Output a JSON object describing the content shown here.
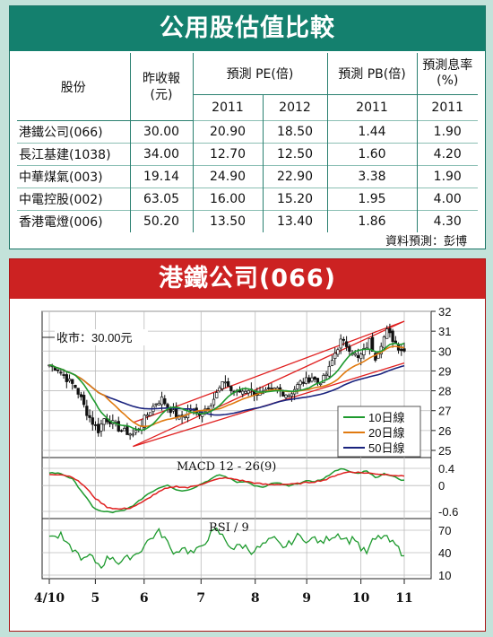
{
  "table": {
    "title": "公用股估值比較",
    "headers": {
      "stock": "股份",
      "prev_close_1": "昨收報",
      "prev_close_2": "(元)",
      "pe": "預測 PE(倍)",
      "pb": "預測 PB(倍)",
      "yield_1": "預測息率",
      "yield_2": "(%)"
    },
    "years": {
      "pe_a": "2011",
      "pe_b": "2012",
      "pb": "2011",
      "yield": "2011"
    },
    "rows": [
      {
        "name": "港鐵公司(066)",
        "close": "30.00",
        "pe2011": "20.90",
        "pe2012": "18.50",
        "pb": "1.44",
        "yield": "1.90"
      },
      {
        "name": "長江基建(1038)",
        "close": "34.00",
        "pe2011": "12.70",
        "pe2012": "12.50",
        "pb": "1.60",
        "yield": "4.20"
      },
      {
        "name": "中華煤氣(003)",
        "close": "19.14",
        "pe2011": "24.90",
        "pe2012": "22.90",
        "pb": "3.38",
        "yield": "1.90"
      },
      {
        "name": "中電控股(002)",
        "close": "63.05",
        "pe2011": "16.00",
        "pe2012": "15.20",
        "pb": "1.95",
        "yield": "4.00"
      },
      {
        "name": "香港電燈(006)",
        "close": "50.20",
        "pe2011": "13.50",
        "pe2012": "13.40",
        "pb": "1.86",
        "yield": "4.30"
      }
    ],
    "source": "資料預測：彭博"
  },
  "chart": {
    "title": "港鐵公司(066)",
    "close_label": "收市：30.00元",
    "legend": [
      "10日線",
      "20日線",
      "50日線"
    ],
    "macd_label": "MACD 12 - 26(9)",
    "rsi_label": "RSI / 9"
  },
  "colors": {
    "table_header": "#14806e",
    "chart_header": "#cc2222",
    "candle": "#111111",
    "ma10": "#1e9a2e",
    "ma20": "#e07a10",
    "ma50": "#1a237e",
    "channel": "#e02020",
    "macd": "#1e9a2e",
    "signal": "#e02020",
    "rsi": "#1e9a2e"
  },
  "chart_data": [
    {
      "type": "candlestick",
      "title": "港鐵公司(066)",
      "x_ticks": [
        "4/10",
        "5",
        "6",
        "7",
        "8",
        "9",
        "10",
        "11"
      ],
      "y_ticks": [
        25,
        26,
        27,
        28,
        29,
        30,
        31,
        32
      ],
      "ylim": [
        25,
        32
      ],
      "annotation": "收市：30.00元",
      "close_anchors": [
        [
          0,
          29.3
        ],
        [
          3,
          29.1
        ],
        [
          6,
          28.6
        ],
        [
          9,
          28.2
        ],
        [
          11,
          27.6
        ],
        [
          13,
          26.9
        ],
        [
          15,
          26.4
        ],
        [
          17,
          26.0
        ],
        [
          19,
          26.6
        ],
        [
          21,
          26.5
        ],
        [
          23,
          26.2
        ],
        [
          25,
          26.0
        ],
        [
          27,
          25.9
        ],
        [
          29,
          25.8
        ],
        [
          31,
          26.1
        ],
        [
          33,
          26.6
        ],
        [
          35,
          27.0
        ],
        [
          37,
          27.4
        ],
        [
          39,
          27.6
        ],
        [
          41,
          27.2
        ],
        [
          43,
          26.9
        ],
        [
          45,
          26.6
        ],
        [
          47,
          26.8
        ],
        [
          49,
          27.1
        ],
        [
          51,
          26.8
        ],
        [
          53,
          27.0
        ],
        [
          55,
          27.2
        ],
        [
          57,
          27.6
        ],
        [
          59,
          28.1
        ],
        [
          61,
          28.5
        ],
        [
          63,
          28.0
        ],
        [
          65,
          27.9
        ],
        [
          67,
          28.0
        ],
        [
          69,
          28.1
        ],
        [
          71,
          27.9
        ],
        [
          73,
          27.8
        ],
        [
          75,
          27.9
        ],
        [
          77,
          28.0
        ],
        [
          79,
          28.1
        ],
        [
          81,
          27.9
        ],
        [
          83,
          27.8
        ],
        [
          85,
          28.1
        ],
        [
          87,
          28.4
        ],
        [
          89,
          28.5
        ],
        [
          91,
          28.7
        ],
        [
          93,
          28.4
        ],
        [
          95,
          28.6
        ],
        [
          97,
          29.1
        ],
        [
          99,
          29.9
        ],
        [
          101,
          30.5
        ],
        [
          103,
          30.3
        ],
        [
          105,
          30.0
        ],
        [
          107,
          29.6
        ],
        [
          109,
          30.0
        ],
        [
          111,
          30.5
        ],
        [
          113,
          29.7
        ],
        [
          115,
          30.4
        ],
        [
          117,
          31.0
        ],
        [
          119,
          30.6
        ],
        [
          121,
          30.2
        ],
        [
          123,
          30.0
        ]
      ],
      "moving_averages": [
        "10日線",
        "20日線",
        "50日線"
      ],
      "channel_lines": [
        {
          "from": [
            29,
            25.2
          ],
          "to": [
            123,
            31.5
          ]
        },
        {
          "from": [
            29,
            26.4
          ],
          "to": [
            123,
            31.5
          ]
        },
        {
          "from": [
            29,
            25.2
          ],
          "to": [
            123,
            29.4
          ]
        }
      ]
    },
    {
      "type": "line",
      "title": "MACD 12 - 26(9)",
      "y_ticks": [
        0.4,
        0,
        -0.6
      ],
      "ylim": [
        -0.7,
        0.55
      ],
      "series": [
        {
          "name": "MACD",
          "anchors": [
            [
              0,
              0.3
            ],
            [
              4,
              0.28
            ],
            [
              8,
              0.15
            ],
            [
              12,
              -0.2
            ],
            [
              15,
              -0.5
            ],
            [
              18,
              -0.6
            ],
            [
              22,
              -0.62
            ],
            [
              26,
              -0.58
            ],
            [
              30,
              -0.42
            ],
            [
              34,
              -0.2
            ],
            [
              38,
              -0.05
            ],
            [
              41,
              0.02
            ],
            [
              44,
              -0.1
            ],
            [
              47,
              -0.12
            ],
            [
              50,
              -0.05
            ],
            [
              53,
              0.05
            ],
            [
              56,
              0.15
            ],
            [
              59,
              0.25
            ],
            [
              62,
              0.18
            ],
            [
              65,
              0.08
            ],
            [
              68,
              0.1
            ],
            [
              71,
              0.0
            ],
            [
              74,
              -0.05
            ],
            [
              77,
              0.05
            ],
            [
              80,
              0.05
            ],
            [
              83,
              -0.02
            ],
            [
              86,
              0.05
            ],
            [
              89,
              0.1
            ],
            [
              92,
              0.1
            ],
            [
              95,
              0.15
            ],
            [
              98,
              0.3
            ],
            [
              101,
              0.4
            ],
            [
              104,
              0.32
            ],
            [
              107,
              0.28
            ],
            [
              110,
              0.35
            ],
            [
              113,
              0.18
            ],
            [
              116,
              0.28
            ],
            [
              119,
              0.22
            ],
            [
              122,
              0.12
            ]
          ]
        },
        {
          "name": "Signal",
          "anchors": [
            [
              0,
              0.26
            ],
            [
              4,
              0.26
            ],
            [
              8,
              0.2
            ],
            [
              12,
              0.0
            ],
            [
              16,
              -0.3
            ],
            [
              20,
              -0.5
            ],
            [
              24,
              -0.55
            ],
            [
              28,
              -0.52
            ],
            [
              32,
              -0.4
            ],
            [
              36,
              -0.22
            ],
            [
              40,
              -0.08
            ],
            [
              44,
              -0.02
            ],
            [
              48,
              -0.05
            ],
            [
              52,
              0.02
            ],
            [
              56,
              0.1
            ],
            [
              60,
              0.18
            ],
            [
              64,
              0.15
            ],
            [
              68,
              0.1
            ],
            [
              72,
              0.05
            ],
            [
              76,
              0.02
            ],
            [
              80,
              0.03
            ],
            [
              84,
              0.03
            ],
            [
              88,
              0.06
            ],
            [
              92,
              0.09
            ],
            [
              96,
              0.14
            ],
            [
              100,
              0.26
            ],
            [
              104,
              0.32
            ],
            [
              108,
              0.3
            ],
            [
              112,
              0.28
            ],
            [
              116,
              0.26
            ],
            [
              120,
              0.24
            ],
            [
              122,
              0.22
            ]
          ]
        }
      ]
    },
    {
      "type": "line",
      "title": "RSI / 9",
      "y_ticks": [
        70,
        40,
        10
      ],
      "ylim": [
        10,
        80
      ],
      "series": [
        {
          "name": "RSI",
          "anchors": [
            [
              0,
              65
            ],
            [
              2,
              60
            ],
            [
              4,
              63
            ],
            [
              6,
              50
            ],
            [
              8,
              45
            ],
            [
              10,
              38
            ],
            [
              12,
              30
            ],
            [
              14,
              36
            ],
            [
              16,
              28
            ],
            [
              18,
              22
            ],
            [
              20,
              32
            ],
            [
              22,
              35
            ],
            [
              24,
              26
            ],
            [
              26,
              30
            ],
            [
              28,
              35
            ],
            [
              30,
              38
            ],
            [
              32,
              45
            ],
            [
              34,
              55
            ],
            [
              36,
              62
            ],
            [
              38,
              68
            ],
            [
              40,
              60
            ],
            [
              42,
              45
            ],
            [
              44,
              40
            ],
            [
              46,
              48
            ],
            [
              48,
              42
            ],
            [
              50,
              40
            ],
            [
              52,
              45
            ],
            [
              54,
              55
            ],
            [
              56,
              65
            ],
            [
              58,
              70
            ],
            [
              60,
              62
            ],
            [
              62,
              52
            ],
            [
              64,
              45
            ],
            [
              66,
              50
            ],
            [
              68,
              48
            ],
            [
              70,
              42
            ],
            [
              72,
              45
            ],
            [
              74,
              50
            ],
            [
              76,
              55
            ],
            [
              78,
              58
            ],
            [
              80,
              50
            ],
            [
              82,
              48
            ],
            [
              84,
              55
            ],
            [
              86,
              62
            ],
            [
              88,
              60
            ],
            [
              90,
              55
            ],
            [
              92,
              60
            ],
            [
              94,
              52
            ],
            [
              96,
              58
            ],
            [
              98,
              62
            ],
            [
              100,
              65
            ],
            [
              102,
              60
            ],
            [
              104,
              56
            ],
            [
              106,
              60
            ],
            [
              108,
              45
            ],
            [
              110,
              40
            ],
            [
              112,
              55
            ],
            [
              114,
              60
            ],
            [
              116,
              62
            ],
            [
              118,
              55
            ],
            [
              120,
              50
            ],
            [
              122,
              40
            ]
          ]
        }
      ]
    }
  ]
}
